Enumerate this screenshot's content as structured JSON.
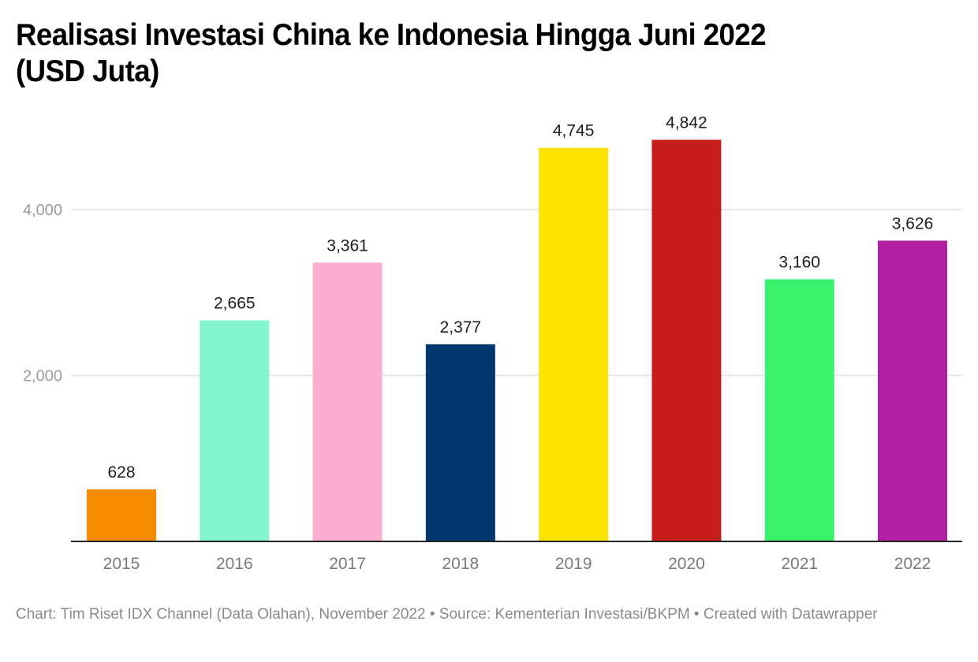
{
  "chart_data": {
    "type": "bar",
    "title": "Realisasi Investasi China ke Indonesia Hingga Juni 2022 (USD Juta)",
    "title_lines": [
      "Realisasi Investasi China ke Indonesia Hingga Juni 2022",
      "(USD Juta)"
    ],
    "xlabel": "",
    "ylabel": "",
    "categories": [
      "2015",
      "2016",
      "2017",
      "2018",
      "2019",
      "2020",
      "2021",
      "2022"
    ],
    "values": [
      628,
      2665,
      3361,
      2377,
      4745,
      4842,
      3160,
      3626
    ],
    "value_labels": [
      "628",
      "2,665",
      "3,361",
      "2,377",
      "4,745",
      "4,842",
      "3,160",
      "3,626"
    ],
    "colors": [
      "#f58b00",
      "#84f5d0",
      "#fbaecf",
      "#00376e",
      "#fde300",
      "#c71e1d",
      "#3bf26c",
      "#b120a3"
    ],
    "ylim": [
      0,
      5000
    ],
    "yticks": [
      2000,
      4000
    ],
    "ytick_labels": [
      "2,000",
      "4,000"
    ],
    "grid": true,
    "legend": "none"
  },
  "footer": {
    "chart_credit": "Chart: Tim Riset IDX Channel (Data Olahan), November 2022",
    "source": "Source: Kementerian Investasi/BKPM",
    "created_with": "Created with Datawrapper",
    "separator": " • "
  }
}
